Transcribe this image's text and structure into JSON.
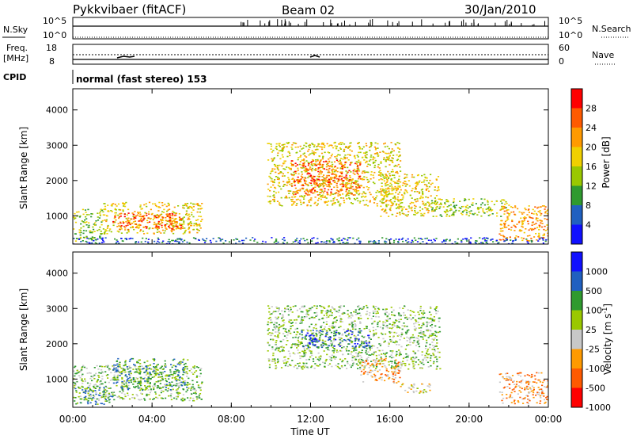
{
  "header": {
    "station": "Pykkvibaer (fitACF)",
    "beam": "Beam 02",
    "date": "30/Jan/2010"
  },
  "status_panels": {
    "nsky": {
      "label": "N.Sky",
      "ticks_left": [
        "10^5",
        "10^0"
      ],
      "ticks_right": [
        "10^5",
        "10^0"
      ],
      "right_label": "N.Search"
    },
    "freq": {
      "label_line1": "Freq.",
      "label_line2": "[MHz]",
      "ticks_left": [
        "18",
        "8"
      ],
      "ticks_right": [
        "60",
        "0"
      ],
      "right_label": "Nave"
    },
    "cpid": {
      "label": "CPID",
      "text": "normal (fast stereo) 153"
    }
  },
  "chart_data": [
    {
      "type": "heatmap",
      "name": "power",
      "x_range_hours": [
        0,
        24
      ],
      "ylabel": "Slant Range [km]",
      "ylim": [
        200,
        4600
      ],
      "yticks": [
        1000,
        2000,
        3000,
        4000
      ],
      "colorbar": {
        "label": "Power [dB]",
        "ticks": [
          "28",
          "24",
          "20",
          "16",
          "12",
          "8",
          "4"
        ],
        "colors": [
          "#ff0000",
          "#ff5a00",
          "#ff9a00",
          "#f0d000",
          "#9ac800",
          "#2f9a2f",
          "#2060c0",
          "#1010ff"
        ]
      },
      "echo_regions": [
        {
          "x": [
            0.0,
            1.5
          ],
          "y": [
            300,
            1200
          ],
          "level": 3
        },
        {
          "x": [
            1.5,
            6.5
          ],
          "y": [
            500,
            1400
          ],
          "level": 4
        },
        {
          "x": [
            2.0,
            5.5
          ],
          "y": [
            600,
            1100
          ],
          "level": 6
        },
        {
          "x": [
            9.8,
            16.5
          ],
          "y": [
            1300,
            3100
          ],
          "level": 4
        },
        {
          "x": [
            11.0,
            14.5
          ],
          "y": [
            1600,
            2600
          ],
          "level": 6
        },
        {
          "x": [
            15.5,
            18.5
          ],
          "y": [
            1000,
            2200
          ],
          "level": 4
        },
        {
          "x": [
            18.0,
            22.0
          ],
          "y": [
            1000,
            1500
          ],
          "level": 3
        },
        {
          "x": [
            21.5,
            24.0
          ],
          "y": [
            300,
            1300
          ],
          "level": 5
        },
        {
          "x": [
            0.0,
            24.0
          ],
          "y": [
            200,
            400
          ],
          "level": 1
        }
      ]
    },
    {
      "type": "heatmap",
      "name": "velocity",
      "x_range_hours": [
        0,
        24
      ],
      "xlabel": "Time UT",
      "xticks": [
        "00:00",
        "04:00",
        "08:00",
        "12:00",
        "16:00",
        "20:00",
        "00:00"
      ],
      "ylabel": "Slant Range [km]",
      "ylim": [
        200,
        4600
      ],
      "yticks": [
        1000,
        2000,
        3000,
        4000
      ],
      "colorbar": {
        "label": "Velocity [m s",
        "label_sup": "-1",
        "label_end": "]",
        "ticks": [
          "1000",
          "500",
          "100",
          "25",
          "-25",
          "-100",
          "-500",
          "-1000"
        ],
        "colors": [
          "#1010ff",
          "#2060c0",
          "#2f9a2f",
          "#9ac800",
          "#c8c8c8",
          "#ff9a00",
          "#ff5a00",
          "#ff0000"
        ]
      },
      "echo_regions": [
        {
          "x": [
            0.0,
            6.5
          ],
          "y": [
            400,
            1400
          ],
          "level": 4
        },
        {
          "x": [
            2.0,
            5.8
          ],
          "y": [
            700,
            1600
          ],
          "level": 5
        },
        {
          "x": [
            0.0,
            2.0
          ],
          "y": [
            300,
            800
          ],
          "level": 5
        },
        {
          "x": [
            9.8,
            18.5
          ],
          "y": [
            1300,
            3100
          ],
          "level": 4
        },
        {
          "x": [
            11.5,
            15.0
          ],
          "y": [
            1900,
            2400
          ],
          "level": 6
        },
        {
          "x": [
            14.5,
            16.5
          ],
          "y": [
            900,
            1600
          ],
          "level": 2
        },
        {
          "x": [
            16.5,
            18.0
          ],
          "y": [
            600,
            900
          ],
          "level": 3
        },
        {
          "x": [
            21.5,
            24.0
          ],
          "y": [
            300,
            1200
          ],
          "level": 2
        }
      ]
    }
  ]
}
